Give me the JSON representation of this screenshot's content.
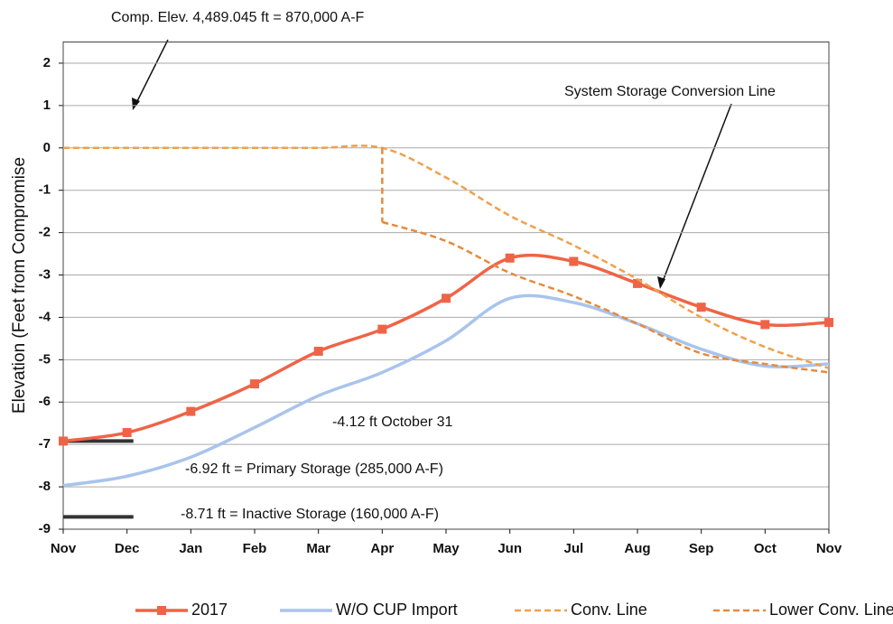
{
  "chart_data": {
    "type": "line",
    "ylabel": "Elevation (Feet from Compromise",
    "categories": [
      "Nov",
      "Dec",
      "Jan",
      "Feb",
      "Mar",
      "Apr",
      "May",
      "Jun",
      "Jul",
      "Aug",
      "Sep",
      "Oct",
      "Nov"
    ],
    "ylim": [
      -9,
      2.5
    ],
    "yticks": [
      -9,
      -8,
      -7,
      -6,
      -5,
      -4,
      -3,
      -2,
      -1,
      0,
      1,
      2
    ],
    "grid": true,
    "series": [
      {
        "name": "2017",
        "color": "#ef6447",
        "markers": true,
        "dashed": false,
        "values": [
          -6.92,
          -6.72,
          -6.22,
          -5.57,
          -4.8,
          -4.28,
          -3.55,
          -2.6,
          -2.68,
          -3.2,
          -3.76,
          -4.17,
          -4.12
        ]
      },
      {
        "name": "W/O CUP Import",
        "color": "#a9c4ec",
        "markers": false,
        "dashed": false,
        "values": [
          -7.97,
          -7.75,
          -7.3,
          -6.6,
          -5.85,
          -5.3,
          -4.55,
          -3.55,
          -3.65,
          -4.15,
          -4.75,
          -5.15,
          -5.1
        ]
      },
      {
        "name": "Conv. Line",
        "color": "#f0a04b",
        "markers": false,
        "dashed": true,
        "values": [
          0,
          0,
          0,
          0,
          0,
          0,
          -0.7,
          -1.6,
          -2.3,
          -3.1,
          -4.0,
          -4.7,
          -5.2
        ]
      },
      {
        "name": "Lower Conv. Line",
        "color": "#e88a3a",
        "markers": false,
        "dashed": true,
        "values": [
          null,
          null,
          null,
          null,
          null,
          -1.75,
          -2.2,
          -2.95,
          -3.5,
          -4.15,
          -4.85,
          -5.1,
          -5.3
        ]
      }
    ],
    "reference_lines": [
      {
        "value": -6.92,
        "label": "-6.92 ft = Primary Storage (285,000 A-F)"
      },
      {
        "value": -8.71,
        "label": "-8.71 ft = Inactive Storage (160,000 A-F)"
      }
    ],
    "annotations": [
      "Comp. Elev. 4,489.045 ft = 870,000 A-F",
      "System Storage Conversion Line",
      "-4.12 ft October 31"
    ]
  }
}
